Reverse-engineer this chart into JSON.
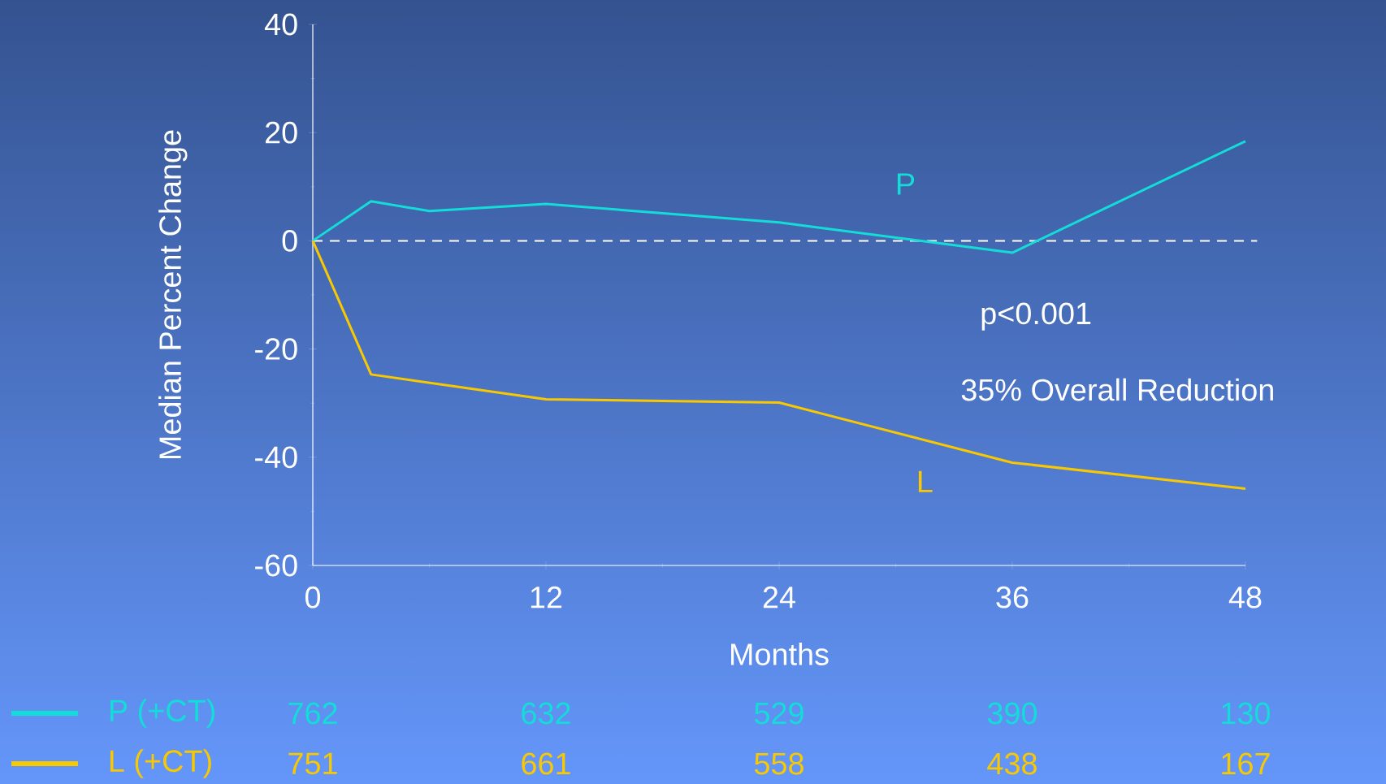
{
  "chart_data": {
    "type": "line",
    "xlabel": "Months",
    "ylabel": "Median Percent Change",
    "xlim": [
      0,
      48
    ],
    "xticks": [
      0,
      12,
      24,
      36,
      48
    ],
    "ylim": [
      -60,
      40
    ],
    "yticks": [
      -60,
      -40,
      -20,
      0,
      20,
      40
    ],
    "series": [
      {
        "name": "P (+CT)",
        "color": "#14dcd8",
        "x": [
          0,
          3,
          6,
          12,
          24,
          36,
          48
        ],
        "values": [
          0,
          7.3,
          5.5,
          6.8,
          3.4,
          -2.2,
          18.4
        ]
      },
      {
        "name": "L (+CT)",
        "color": "#f8c800",
        "x": [
          0,
          3,
          12,
          24,
          36,
          48
        ],
        "values": [
          0,
          -24.7,
          -29.3,
          -29.9,
          -41,
          -45.8
        ]
      }
    ],
    "ref_lines": [
      {
        "axis": "y",
        "value": 0,
        "color": "#ffffff",
        "line_style": "dashed"
      }
    ],
    "annotations": [
      "P",
      "L",
      "p<0.001",
      "35% Overall Reduction",
      "762",
      "632",
      "529",
      "390",
      "130",
      "751",
      "661",
      "558",
      "438",
      "167"
    ],
    "legend": "bottom left",
    "marker": "none",
    "line_style": "solid",
    "grid": false
  }
}
